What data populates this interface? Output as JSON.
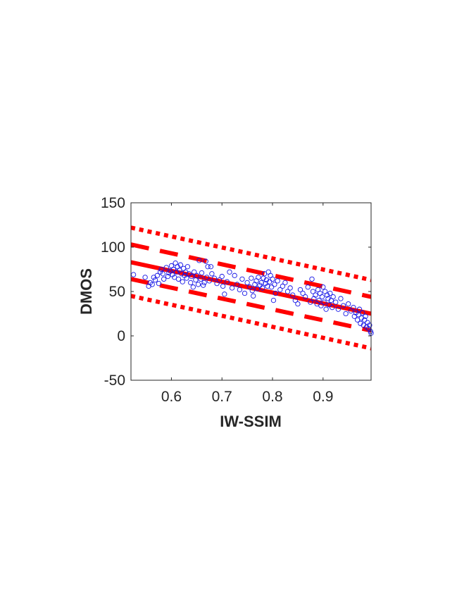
{
  "chart_data": {
    "type": "scatter",
    "xlabel": "IW-SSIM",
    "ylabel": "DMOS",
    "xlim": [
      0.52,
      0.995
    ],
    "ylim": [
      -50,
      150
    ],
    "xticks": [
      0.6,
      0.7,
      0.8,
      0.9
    ],
    "xtick_labels": [
      "0.6",
      "0.7",
      "0.8",
      "0.9"
    ],
    "yticks": [
      -50,
      0,
      50,
      100,
      150
    ],
    "ytick_labels": [
      "-50",
      "0",
      "50",
      "100",
      "150"
    ],
    "grid": false,
    "colors": {
      "points": "#1414e6",
      "lines": "#ff0000",
      "axes": "#262626"
    },
    "fit_lines": [
      {
        "style": "solid",
        "x": [
          0.52,
          0.995
        ],
        "y": [
          83,
          25
        ]
      },
      {
        "style": "dashed",
        "x": [
          0.52,
          0.995
        ],
        "y": [
          103,
          44
        ]
      },
      {
        "style": "dashed",
        "x": [
          0.52,
          0.995
        ],
        "y": [
          64,
          6
        ]
      },
      {
        "style": "dotted",
        "x": [
          0.52,
          0.995
        ],
        "y": [
          122,
          63
        ]
      },
      {
        "style": "dotted",
        "x": [
          0.52,
          0.995
        ],
        "y": [
          45,
          -14
        ]
      }
    ],
    "points": [
      [
        0.525,
        69
      ],
      [
        0.548,
        66
      ],
      [
        0.555,
        56
      ],
      [
        0.558,
        60
      ],
      [
        0.562,
        58
      ],
      [
        0.565,
        66
      ],
      [
        0.568,
        63
      ],
      [
        0.572,
        68
      ],
      [
        0.575,
        59
      ],
      [
        0.578,
        72
      ],
      [
        0.58,
        75
      ],
      [
        0.583,
        70
      ],
      [
        0.585,
        64
      ],
      [
        0.59,
        77
      ],
      [
        0.593,
        67
      ],
      [
        0.595,
        71
      ],
      [
        0.598,
        73
      ],
      [
        0.6,
        79
      ],
      [
        0.602,
        69
      ],
      [
        0.604,
        75
      ],
      [
        0.606,
        66
      ],
      [
        0.608,
        82
      ],
      [
        0.61,
        72
      ],
      [
        0.612,
        78
      ],
      [
        0.614,
        64
      ],
      [
        0.616,
        74
      ],
      [
        0.618,
        80
      ],
      [
        0.62,
        70
      ],
      [
        0.622,
        61
      ],
      [
        0.624,
        76
      ],
      [
        0.626,
        68
      ],
      [
        0.628,
        72
      ],
      [
        0.63,
        65
      ],
      [
        0.632,
        78
      ],
      [
        0.635,
        70
      ],
      [
        0.638,
        60
      ],
      [
        0.64,
        67
      ],
      [
        0.643,
        55
      ],
      [
        0.645,
        72
      ],
      [
        0.648,
        63
      ],
      [
        0.65,
        68
      ],
      [
        0.653,
        58
      ],
      [
        0.655,
        85
      ],
      [
        0.658,
        64
      ],
      [
        0.66,
        71
      ],
      [
        0.663,
        57
      ],
      [
        0.665,
        60
      ],
      [
        0.668,
        84
      ],
      [
        0.67,
        66
      ],
      [
        0.672,
        78
      ],
      [
        0.675,
        62
      ],
      [
        0.678,
        78
      ],
      [
        0.68,
        70
      ],
      [
        0.685,
        65
      ],
      [
        0.69,
        59
      ],
      [
        0.695,
        63
      ],
      [
        0.7,
        67
      ],
      [
        0.702,
        56
      ],
      [
        0.705,
        47
      ],
      [
        0.71,
        61
      ],
      [
        0.715,
        72
      ],
      [
        0.72,
        54
      ],
      [
        0.725,
        68
      ],
      [
        0.73,
        58
      ],
      [
        0.735,
        52
      ],
      [
        0.74,
        64
      ],
      [
        0.745,
        48
      ],
      [
        0.75,
        60
      ],
      [
        0.755,
        55
      ],
      [
        0.758,
        65
      ],
      [
        0.76,
        51
      ],
      [
        0.762,
        45
      ],
      [
        0.765,
        58
      ],
      [
        0.768,
        62
      ],
      [
        0.77,
        53
      ],
      [
        0.772,
        66
      ],
      [
        0.775,
        57
      ],
      [
        0.778,
        60
      ],
      [
        0.78,
        54
      ],
      [
        0.782,
        65
      ],
      [
        0.784,
        70
      ],
      [
        0.786,
        59
      ],
      [
        0.788,
        63
      ],
      [
        0.79,
        56
      ],
      [
        0.792,
        72
      ],
      [
        0.794,
        61
      ],
      [
        0.796,
        68
      ],
      [
        0.798,
        55
      ],
      [
        0.8,
        64
      ],
      [
        0.802,
        40
      ],
      [
        0.804,
        58
      ],
      [
        0.806,
        48
      ],
      [
        0.81,
        62
      ],
      [
        0.815,
        52
      ],
      [
        0.82,
        56
      ],
      [
        0.825,
        60
      ],
      [
        0.83,
        50
      ],
      [
        0.835,
        54
      ],
      [
        0.84,
        46
      ],
      [
        0.845,
        40
      ],
      [
        0.85,
        36
      ],
      [
        0.855,
        52
      ],
      [
        0.86,
        48
      ],
      [
        0.865,
        44
      ],
      [
        0.87,
        55
      ],
      [
        0.875,
        38
      ],
      [
        0.878,
        64
      ],
      [
        0.88,
        50
      ],
      [
        0.882,
        42
      ],
      [
        0.885,
        46
      ],
      [
        0.888,
        36
      ],
      [
        0.89,
        52
      ],
      [
        0.892,
        40
      ],
      [
        0.894,
        48
      ],
      [
        0.896,
        34
      ],
      [
        0.898,
        44
      ],
      [
        0.9,
        55
      ],
      [
        0.902,
        38
      ],
      [
        0.904,
        50
      ],
      [
        0.906,
        30
      ],
      [
        0.908,
        46
      ],
      [
        0.91,
        42
      ],
      [
        0.912,
        35
      ],
      [
        0.914,
        48
      ],
      [
        0.916,
        40
      ],
      [
        0.918,
        32
      ],
      [
        0.92,
        44
      ],
      [
        0.925,
        38
      ],
      [
        0.93,
        30
      ],
      [
        0.935,
        42
      ],
      [
        0.94,
        34
      ],
      [
        0.945,
        25
      ],
      [
        0.95,
        36
      ],
      [
        0.955,
        28
      ],
      [
        0.96,
        32
      ],
      [
        0.962,
        22
      ],
      [
        0.965,
        26
      ],
      [
        0.968,
        18
      ],
      [
        0.97,
        24
      ],
      [
        0.972,
        30
      ],
      [
        0.974,
        14
      ],
      [
        0.976,
        20
      ],
      [
        0.978,
        26
      ],
      [
        0.98,
        12
      ],
      [
        0.982,
        18
      ],
      [
        0.984,
        22
      ],
      [
        0.986,
        10
      ],
      [
        0.988,
        15
      ],
      [
        0.99,
        8
      ],
      [
        0.992,
        12
      ],
      [
        0.994,
        5
      ],
      [
        0.995,
        3
      ]
    ]
  }
}
